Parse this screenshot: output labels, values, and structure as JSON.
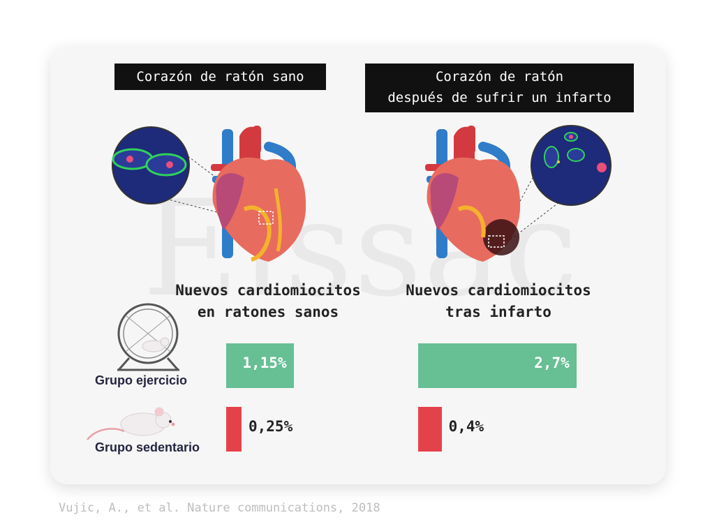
{
  "watermark": "Elssac",
  "panels": [
    {
      "title_lines": [
        "Corazón de ratón sano"
      ]
    },
    {
      "title_lines": [
        "Corazón de ratón",
        "después de sufrir un infarto"
      ]
    }
  ],
  "chart_data": {
    "type": "bar",
    "orientation": "horizontal",
    "categories": [
      "Nuevos cardiomiocitos en ratones sanos",
      "Nuevos cardiomiocitos tras infarto"
    ],
    "column_titles": [
      [
        "Nuevos cardiomiocitos",
        "en ratones sanos"
      ],
      [
        "Nuevos cardiomiocitos",
        "tras infarto"
      ]
    ],
    "series": [
      {
        "name": "Grupo ejercicio",
        "values": [
          1.15,
          2.7
        ],
        "labels": [
          "1,15%",
          "2,7%"
        ],
        "color": "#67bf94"
      },
      {
        "name": "Grupo sedentario",
        "values": [
          0.25,
          0.4
        ],
        "labels": [
          "0,25%",
          "0,4%"
        ],
        "color": "#e4424a"
      }
    ],
    "unit": "%"
  },
  "colors": {
    "exercise": "#67bf94",
    "sedentary": "#e4424a",
    "title_bg": "#111111",
    "label": "#252542"
  },
  "icons": [
    "hamster-wheel-icon",
    "mouse-icon",
    "heart-illustration",
    "micrograph-circle"
  ],
  "citation": "Vujic, A., et al. Nature communications, 2018"
}
